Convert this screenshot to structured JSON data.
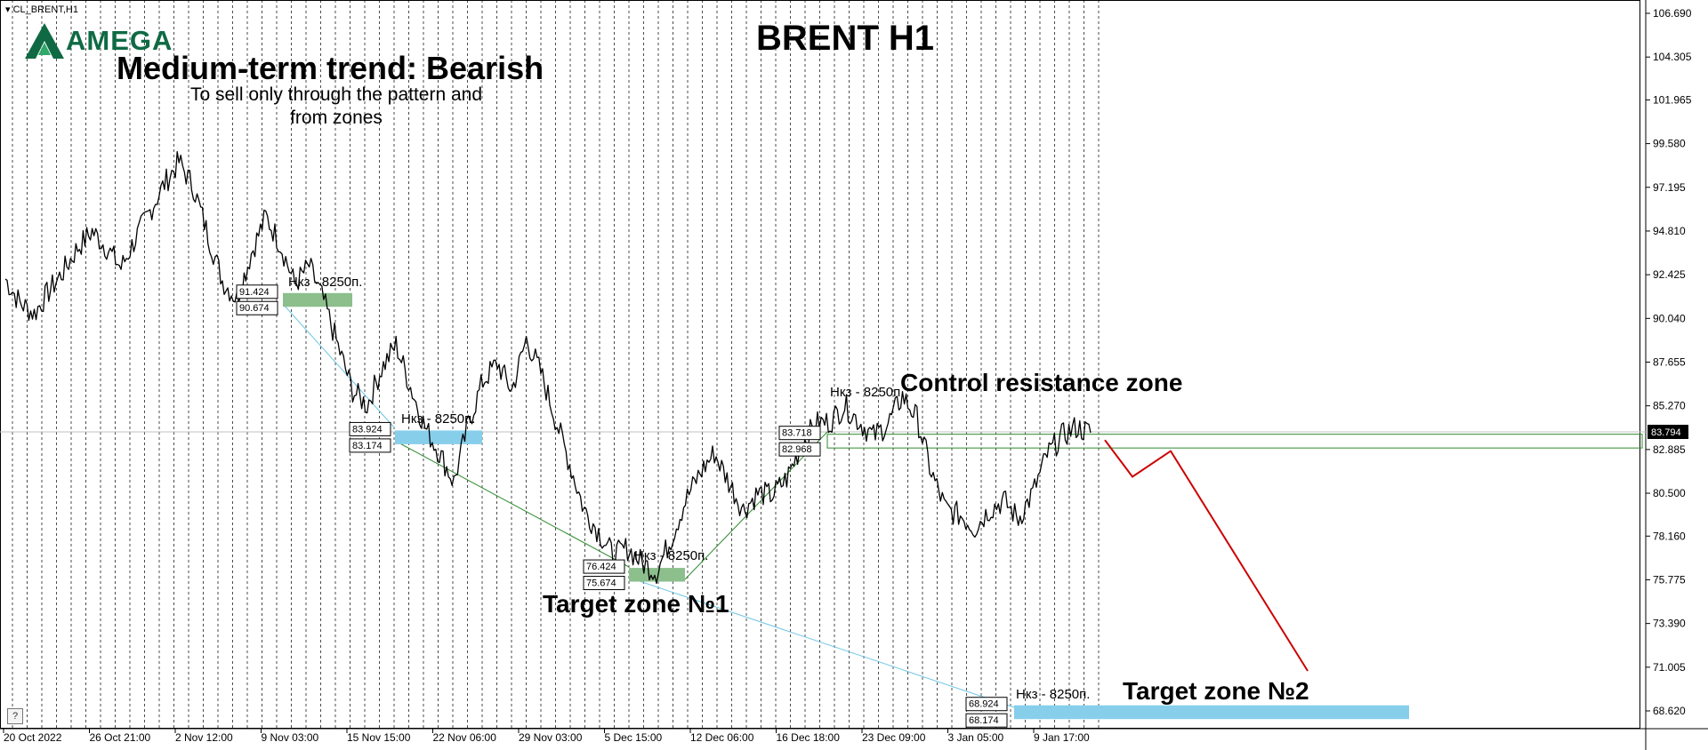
{
  "window": {
    "symbol_label": "CL_BRENT,H1"
  },
  "logo": {
    "name": "AMEGA"
  },
  "annotations": {
    "title": "BRENT H1",
    "trend": "Medium-term trend: Bearish",
    "advice_line1": "To sell only through the pattern and",
    "advice_line2": "from zones",
    "control_zone": "Control resistance zone",
    "target1": "Target zone №1",
    "target2": "Target zone №2",
    "zone_note": "Нкз - 8250п."
  },
  "help_button": "?",
  "colors": {
    "green_zone": "#8cbf8c",
    "blue_zone": "#87ceeb",
    "forecast": "#cc0000",
    "price": "#000000",
    "logo": "#0f6a44"
  },
  "chart_data": {
    "type": "line",
    "title": "BRENT H1",
    "ylim": [
      67.3,
      107.9
    ],
    "y_ticks": [
      "106.690",
      "104.305",
      "101.965",
      "99.580",
      "97.195",
      "94.810",
      "92.425",
      "90.040",
      "87.655",
      "85.270",
      "82.885",
      "80.500",
      "78.160",
      "75.775",
      "73.390",
      "71.005",
      "68.620"
    ],
    "x_ticks": [
      "20 Oct 2022",
      "26 Oct 21:00",
      "2 Nov 12:00",
      "9 Nov 03:00",
      "15 Nov 15:00",
      "22 Nov 06:00",
      "29 Nov 03:00",
      "5 Dec 15:00",
      "12 Dec 06:00",
      "16 Dec 18:00",
      "23 Dec 09:00",
      "3 Jan 05:00",
      "9 Jan 17:00"
    ],
    "current_price": "83.794",
    "series": [
      {
        "values": [
          92.2,
          90.9,
          90.3,
          91.5,
          92.6,
          93.9,
          94.8,
          93.9,
          92.8,
          94.4,
          95.9,
          97.4,
          98.6,
          97.2,
          94.6,
          92.1,
          91.1,
          93.6,
          95.6,
          94.1,
          91.9,
          92.9,
          91.0,
          88.5,
          86.1,
          85.3,
          87.3,
          88.6,
          86.3,
          84.1,
          82.7,
          81.1,
          84.3,
          86.6,
          87.6,
          86.1,
          88.9,
          87.1,
          84.6,
          82.1,
          79.6,
          78.4,
          77.1,
          77.5,
          76.7,
          76.2,
          78.0,
          80.1,
          81.6,
          82.7,
          81.1,
          79.6,
          80.5,
          80.4,
          81.3,
          83.1,
          84.3,
          84.4,
          85.3,
          84.4,
          83.6,
          84.3,
          85.8,
          84.6,
          81.6,
          79.6,
          79.3,
          78.6,
          79.6,
          80.1,
          79.1,
          80.5,
          82.6,
          83.6,
          84.1,
          83.8
        ]
      }
    ],
    "zones": [
      {
        "top": "91.424",
        "bottom": "90.674"
      },
      {
        "top": "83.924",
        "bottom": "83.174"
      },
      {
        "top": "76.424",
        "bottom": "75.674"
      },
      {
        "top": "83.718",
        "bottom": "82.968"
      },
      {
        "top": "68.924",
        "bottom": "68.174"
      }
    ],
    "forecast_path": [
      83.4,
      81.4,
      82.8,
      70.8
    ]
  }
}
